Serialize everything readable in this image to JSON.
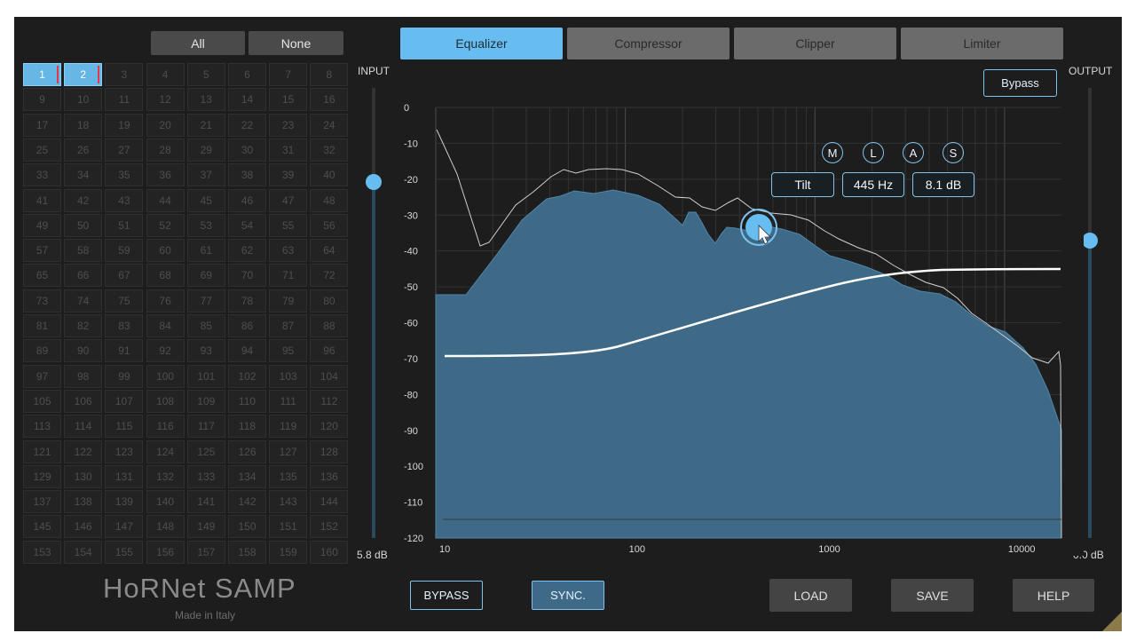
{
  "selection": {
    "all_label": "All",
    "none_label": "None"
  },
  "channels": {
    "selected": [
      1,
      2
    ],
    "labels": [
      "1",
      "2",
      "3",
      "4",
      "5",
      "6",
      "7",
      "8",
      "9",
      "10",
      "11",
      "12",
      "13",
      "14",
      "15",
      "16",
      "17",
      "18",
      "19",
      "20",
      "21",
      "22",
      "23",
      "24",
      "25",
      "26",
      "27",
      "28",
      "29",
      "30",
      "31",
      "32",
      "33",
      "34",
      "35",
      "36",
      "37",
      "38",
      "39",
      "40",
      "41",
      "42",
      "43",
      "44",
      "45",
      "46",
      "47",
      "48",
      "49",
      "50",
      "51",
      "52",
      "53",
      "54",
      "55",
      "56",
      "57",
      "58",
      "59",
      "60",
      "61",
      "62",
      "63",
      "64",
      "65",
      "66",
      "67",
      "68",
      "69",
      "70",
      "71",
      "72",
      "73",
      "74",
      "75",
      "76",
      "77",
      "78",
      "79",
      "80",
      "81",
      "82",
      "83",
      "84",
      "85",
      "86",
      "87",
      "88",
      "89",
      "90",
      "91",
      "92",
      "93",
      "94",
      "95",
      "96",
      "97",
      "98",
      "99",
      "100",
      "101",
      "102",
      "103",
      "104",
      "105",
      "106",
      "107",
      "108",
      "109",
      "110",
      "111",
      "112",
      "113",
      "114",
      "115",
      "116",
      "117",
      "118",
      "119",
      "120",
      "121",
      "122",
      "123",
      "124",
      "125",
      "126",
      "127",
      "128",
      "129",
      "130",
      "131",
      "132",
      "133",
      "134",
      "135",
      "136",
      "137",
      "138",
      "139",
      "140",
      "141",
      "142",
      "143",
      "144",
      "145",
      "146",
      "147",
      "148",
      "149",
      "150",
      "151",
      "152",
      "153",
      "154",
      "155",
      "156",
      "157",
      "158",
      "159",
      "160"
    ]
  },
  "input": {
    "label": "INPUT",
    "value": "5.8 dB",
    "level": 0.79
  },
  "output": {
    "label": "OUTPUT",
    "value": "0.0 dB",
    "level": 0.66
  },
  "tabs": [
    "Equalizer",
    "Compressor",
    "Clipper",
    "Limiter"
  ],
  "active_tab": 0,
  "bypass_top": "Bypass",
  "graph": {
    "y_ticks": [
      "0",
      "-10",
      "-20",
      "-30",
      "-40",
      "-50",
      "-60",
      "-70",
      "-80",
      "-90",
      "-100",
      "-110",
      "-120"
    ],
    "x_ticks": [
      "10",
      "100",
      "1000",
      "10000"
    ]
  },
  "band": {
    "modes": [
      "M",
      "L",
      "A",
      "S"
    ],
    "type": "Tilt",
    "freq": "445 Hz",
    "gain": "8.1 dB"
  },
  "footer": {
    "bypass": "BYPASS",
    "sync": "SYNC.",
    "load": "LOAD",
    "save": "SAVE",
    "help": "HELP"
  },
  "brand": {
    "name": "HoRNet SAMP",
    "tagline": "Made in Italy"
  },
  "colors": {
    "accent": "#67bdf0",
    "spectrum": "#3e6a88",
    "panel": "#1d1d1d"
  }
}
